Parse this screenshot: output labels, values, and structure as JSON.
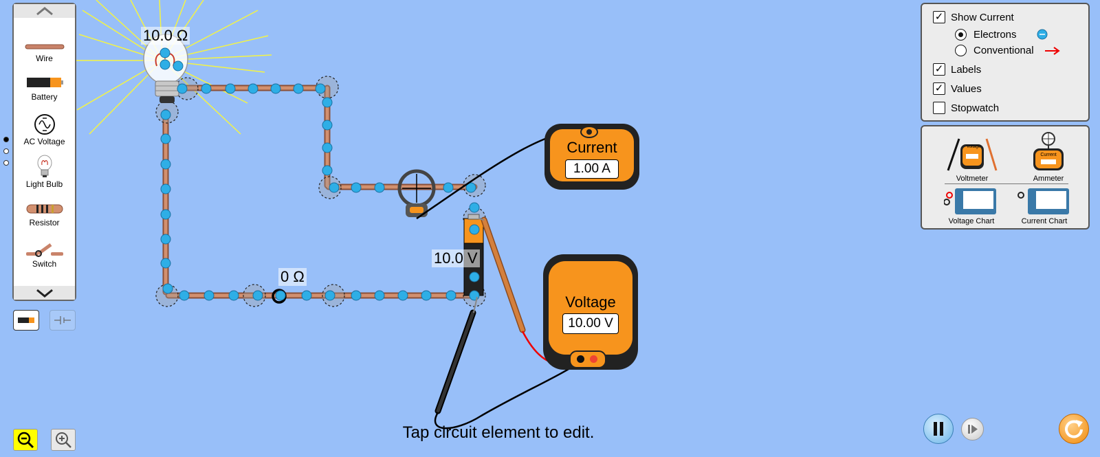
{
  "toolbox": {
    "items": [
      {
        "label": "Wire",
        "icon": "wire-icon"
      },
      {
        "label": "Battery",
        "icon": "battery-icon"
      },
      {
        "label": "AC Voltage",
        "icon": "ac-voltage-icon"
      },
      {
        "label": "Light Bulb",
        "icon": "light-bulb-icon"
      },
      {
        "label": "Resistor",
        "icon": "resistor-icon"
      },
      {
        "label": "Switch",
        "icon": "switch-icon"
      }
    ],
    "page_count": 3,
    "active_page": 1
  },
  "options": {
    "show_current": {
      "label": "Show Current",
      "checked": true
    },
    "electrons": {
      "label": "Electrons",
      "selected": true
    },
    "conventional": {
      "label": "Conventional",
      "selected": false
    },
    "labels": {
      "label": "Labels",
      "checked": true
    },
    "values": {
      "label": "Values",
      "checked": true
    },
    "stopwatch": {
      "label": "Stopwatch",
      "checked": false
    }
  },
  "instruments": {
    "voltmeter": "Voltmeter",
    "ammeter": "Ammeter",
    "voltage_chart": "Voltage Chart",
    "current_chart": "Current Chart",
    "voltmeter_mini_text": "Voltage",
    "ammeter_mini_text": "Current"
  },
  "circuit": {
    "bulb_resistance": "10.0 Ω",
    "switch_resistance": "0 Ω",
    "battery_voltage": "10.0 V"
  },
  "ammeter": {
    "title": "Current",
    "reading": "1.00 A"
  },
  "voltmeter": {
    "title": "Voltage",
    "reading": "10.00 V"
  },
  "hint": "Tap circuit element to edit.",
  "colors": {
    "background": "#98bff9",
    "wire": "#b87358",
    "electron": "#2eaee6",
    "meter_orange": "#f7941d",
    "zoom_active": "#ffff00"
  }
}
